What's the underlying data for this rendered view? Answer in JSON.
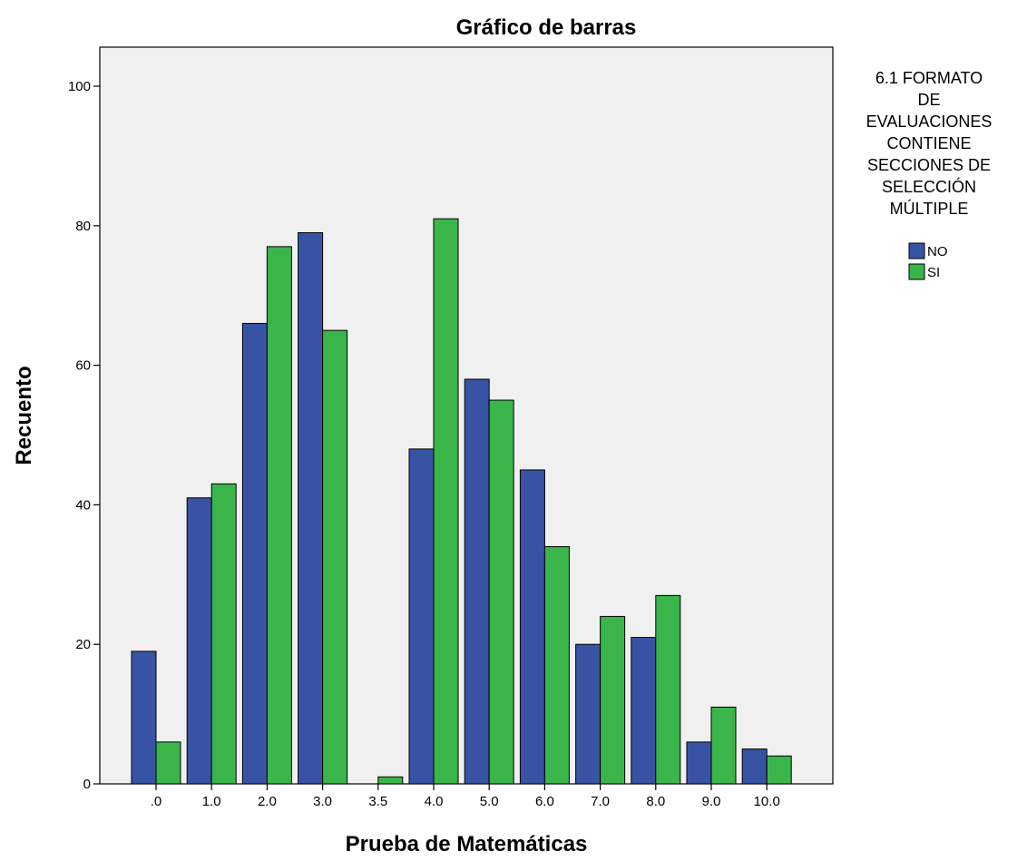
{
  "chart_data": {
    "type": "bar",
    "title": "Gráfico de barras",
    "xlabel": "Prueba de Matemáticas",
    "ylabel": "Recuento",
    "categories": [
      ".0",
      "1.0",
      "2.0",
      "3.0",
      "3.5",
      "4.0",
      "5.0",
      "6.0",
      "7.0",
      "8.0",
      "9.0",
      "10.0"
    ],
    "series": [
      {
        "name": "NO",
        "color": "#3953a4",
        "values": [
          19,
          41,
          66,
          79,
          0,
          48,
          58,
          45,
          20,
          21,
          6,
          5
        ]
      },
      {
        "name": "SI",
        "color": "#3ab54a",
        "values": [
          6,
          43,
          77,
          65,
          1,
          81,
          55,
          34,
          24,
          27,
          11,
          4
        ]
      }
    ],
    "ylim": [
      0,
      105
    ],
    "yticks": [
      0,
      20,
      40,
      60,
      80,
      100
    ],
    "ytick_labels": [
      "0",
      "20",
      "40",
      "60",
      "80",
      "100"
    ],
    "legend": {
      "title_lines": [
        "6.1 FORMATO",
        "DE",
        "EVALUACIONES",
        "CONTIENE",
        "SECCIONES DE",
        "SELECCIÓN",
        "MÚLTIPLE"
      ],
      "placement": "right"
    },
    "plot_background": "#f0f0f0",
    "grid": false
  }
}
